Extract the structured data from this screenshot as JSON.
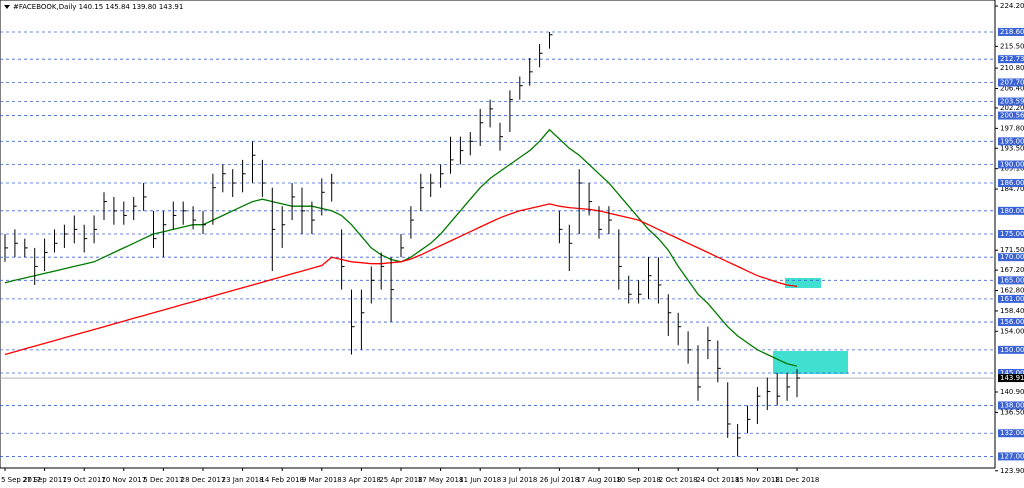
{
  "chart_data": {
    "type": "ohlc",
    "title": "#FACEBOOK,Daily  140.15 145.84 139.80 143.91",
    "color": "#000000",
    "categories": [
      "5 Sep 2017",
      null,
      null,
      null,
      "27 Sep 2017",
      null,
      null,
      null,
      "19 Oct 2017",
      null,
      null,
      null,
      "10 Nov 2017",
      null,
      null,
      null,
      "5 Dec 2017",
      null,
      null,
      null,
      "28 Dec 2017",
      null,
      null,
      null,
      "23 Jan 2018",
      null,
      null,
      null,
      "14 Feb 2018",
      null,
      null,
      null,
      "9 Mar 2018",
      null,
      null,
      null,
      "3 Apr 2018",
      null,
      null,
      null,
      "25 Apr 2018",
      null,
      null,
      null,
      "17 May 2018",
      null,
      null,
      null,
      "11 Jun 2018",
      null,
      null,
      null,
      "3 Jul 2018",
      null,
      null,
      null,
      "26 Jul 2018",
      null,
      null,
      null,
      "17 Aug 2018",
      null,
      null,
      null,
      "10 Sep 2018",
      null,
      null,
      null,
      "2 Oct 2018",
      null,
      null,
      null,
      "24 Oct 2018",
      null,
      null,
      null,
      "15 Nov 2018",
      null,
      null,
      null,
      "11 Dec 2018"
    ],
    "high": [
      175,
      176,
      174,
      172,
      174,
      176,
      177,
      179,
      177,
      179,
      184,
      183,
      182,
      183,
      186,
      180,
      180,
      182,
      182,
      181,
      180,
      188,
      190,
      189,
      191,
      195,
      191,
      185,
      181,
      186,
      185,
      182,
      187,
      188,
      176,
      163,
      163,
      168,
      171,
      170,
      175,
      181,
      188,
      188,
      190,
      196,
      196,
      197,
      202,
      204,
      199,
      206,
      209,
      213,
      216,
      218.6,
      180,
      177,
      189,
      186,
      181,
      181,
      176,
      166,
      165,
      170,
      170,
      162,
      158,
      154,
      151,
      155,
      152,
      143,
      134,
      138,
      142,
      144,
      145,
      145,
      145.84
    ],
    "low": [
      169,
      170,
      170,
      164,
      167,
      171,
      172,
      173,
      171,
      173,
      178,
      177,
      177,
      178,
      180,
      172,
      170,
      176,
      177,
      176,
      175,
      177,
      184,
      183,
      184,
      186,
      183,
      167,
      172,
      178,
      175,
      175,
      179,
      182,
      163,
      149,
      150,
      160,
      163,
      156,
      170,
      174,
      180,
      183,
      185,
      188,
      190,
      192,
      194,
      198,
      193,
      197,
      204,
      207,
      211,
      215,
      173,
      167,
      175,
      179,
      174,
      175,
      163,
      160,
      160,
      161,
      160,
      153,
      151,
      147,
      139,
      148,
      143,
      131,
      127,
      132,
      134,
      137,
      138,
      139,
      139.8
    ],
    "close": [
      172,
      173,
      172,
      168,
      171,
      173,
      175,
      176,
      174,
      176,
      182,
      180,
      179,
      181,
      183,
      174,
      177,
      179,
      180,
      178,
      177,
      185,
      188,
      186,
      188,
      192,
      186,
      176,
      177,
      183,
      180,
      178,
      184,
      186,
      168,
      155,
      158,
      165,
      168,
      163,
      172,
      178,
      185,
      186,
      188,
      191,
      193,
      195,
      199,
      202,
      196,
      204,
      207,
      210,
      214,
      218,
      176,
      173,
      186,
      182,
      176,
      178,
      168,
      162,
      162,
      166,
      164,
      158,
      155,
      150,
      142,
      152,
      146,
      134,
      131,
      135,
      140,
      141,
      140,
      142,
      143.91
    ],
    "lines": [
      {
        "color": "#007a00",
        "values": [
          164.5,
          165,
          165.5,
          166,
          166.5,
          167,
          167.5,
          168,
          168.5,
          169,
          170,
          171,
          172,
          173,
          174,
          175,
          175.5,
          176,
          176.5,
          177,
          177,
          178,
          179,
          180,
          181,
          182,
          182.5,
          182,
          181.5,
          181,
          181,
          181,
          180.5,
          180,
          179,
          177,
          174.5,
          172,
          170.5,
          169.5,
          169,
          170,
          171.5,
          173,
          175,
          177.5,
          180,
          182.5,
          185,
          187,
          188.5,
          190,
          191.5,
          193,
          195,
          197.5,
          195.5,
          193.5,
          192,
          190,
          188,
          186,
          183.5,
          181,
          178.5,
          176,
          174,
          171.5,
          168,
          165,
          162,
          160,
          157.5,
          155,
          153,
          151.5,
          150,
          149,
          148,
          147,
          146.5
        ]
      },
      {
        "color": "#ff0000",
        "values": [
          149,
          149.6,
          150.2,
          150.8,
          151.4,
          152,
          152.6,
          153.2,
          153.8,
          154.4,
          155,
          155.6,
          156.2,
          156.8,
          157.4,
          158,
          158.6,
          159.2,
          159.8,
          160.4,
          161,
          161.6,
          162.2,
          162.8,
          163.4,
          164,
          164.6,
          165.2,
          165.8,
          166.4,
          167,
          167.6,
          168.2,
          170,
          169.5,
          169,
          168.8,
          168.6,
          168.6,
          168.8,
          169,
          169.6,
          170.5,
          171.5,
          172.5,
          173.5,
          174.5,
          175.5,
          176.5,
          177.5,
          178.5,
          179.3,
          180,
          180.5,
          181,
          181.5,
          181,
          180.7,
          180.5,
          180.3,
          180,
          179.5,
          179,
          178.5,
          178,
          177,
          176,
          175,
          174,
          173,
          172,
          171,
          170,
          169,
          168,
          167,
          166,
          165.3,
          164.6,
          164,
          163.7
        ]
      }
    ],
    "ylim": [
      124.5,
      225.5
    ],
    "yticks": [
      {
        "value": 224.2,
        "label": "224.20"
      },
      {
        "value": 215.5,
        "label": "215.50"
      },
      {
        "value": 210.8,
        "label": "210.80"
      },
      {
        "value": 206.4,
        "label": "206.40"
      },
      {
        "value": 202.2,
        "label": "202.20"
      },
      {
        "value": 197.8,
        "label": "197.80"
      },
      {
        "value": 193.5,
        "label": "193.50"
      },
      {
        "value": 189.1,
        "label": "189.10"
      },
      {
        "value": 184.7,
        "label": "184.70"
      },
      {
        "value": 171.5,
        "label": "171.50"
      },
      {
        "value": 167.2,
        "label": "167.20"
      },
      {
        "value": 162.8,
        "label": "162.80"
      },
      {
        "value": 158.4,
        "label": "158.40"
      },
      {
        "value": 154,
        "label": "154.00"
      },
      {
        "value": 140.9,
        "label": "140.90"
      },
      {
        "value": 136.5,
        "label": "136.50"
      },
      {
        "value": 123.9,
        "label": "123.90"
      }
    ],
    "levels": [
      {
        "value": 218.6,
        "label": "218.60"
      },
      {
        "value": 212.73,
        "label": "212.73"
      },
      {
        "value": 207.7,
        "label": "207.70"
      },
      {
        "value": 203.59,
        "label": "203.59"
      },
      {
        "value": 200.56,
        "label": "200.56"
      },
      {
        "value": 195,
        "label": "195.00"
      },
      {
        "value": 190,
        "label": "190.00"
      },
      {
        "value": 186,
        "label": "186.00"
      },
      {
        "value": 180,
        "label": "180.00"
      },
      {
        "value": 175,
        "label": "175.00"
      },
      {
        "value": 170,
        "label": "170.00"
      },
      {
        "value": 165,
        "label": "165.00"
      },
      {
        "value": 161,
        "label": "161.00"
      },
      {
        "value": 156,
        "label": "156.00"
      },
      {
        "value": 150,
        "label": "150.00"
      },
      {
        "value": 145,
        "label": "145.00"
      },
      {
        "value": 138,
        "label": "138.00"
      },
      {
        "value": 132,
        "label": "132.00"
      },
      {
        "value": 127,
        "label": "127.00"
      }
    ],
    "level_color": "#3b63d6",
    "last_price": {
      "value": 143.91,
      "label": "143.91"
    }
  }
}
